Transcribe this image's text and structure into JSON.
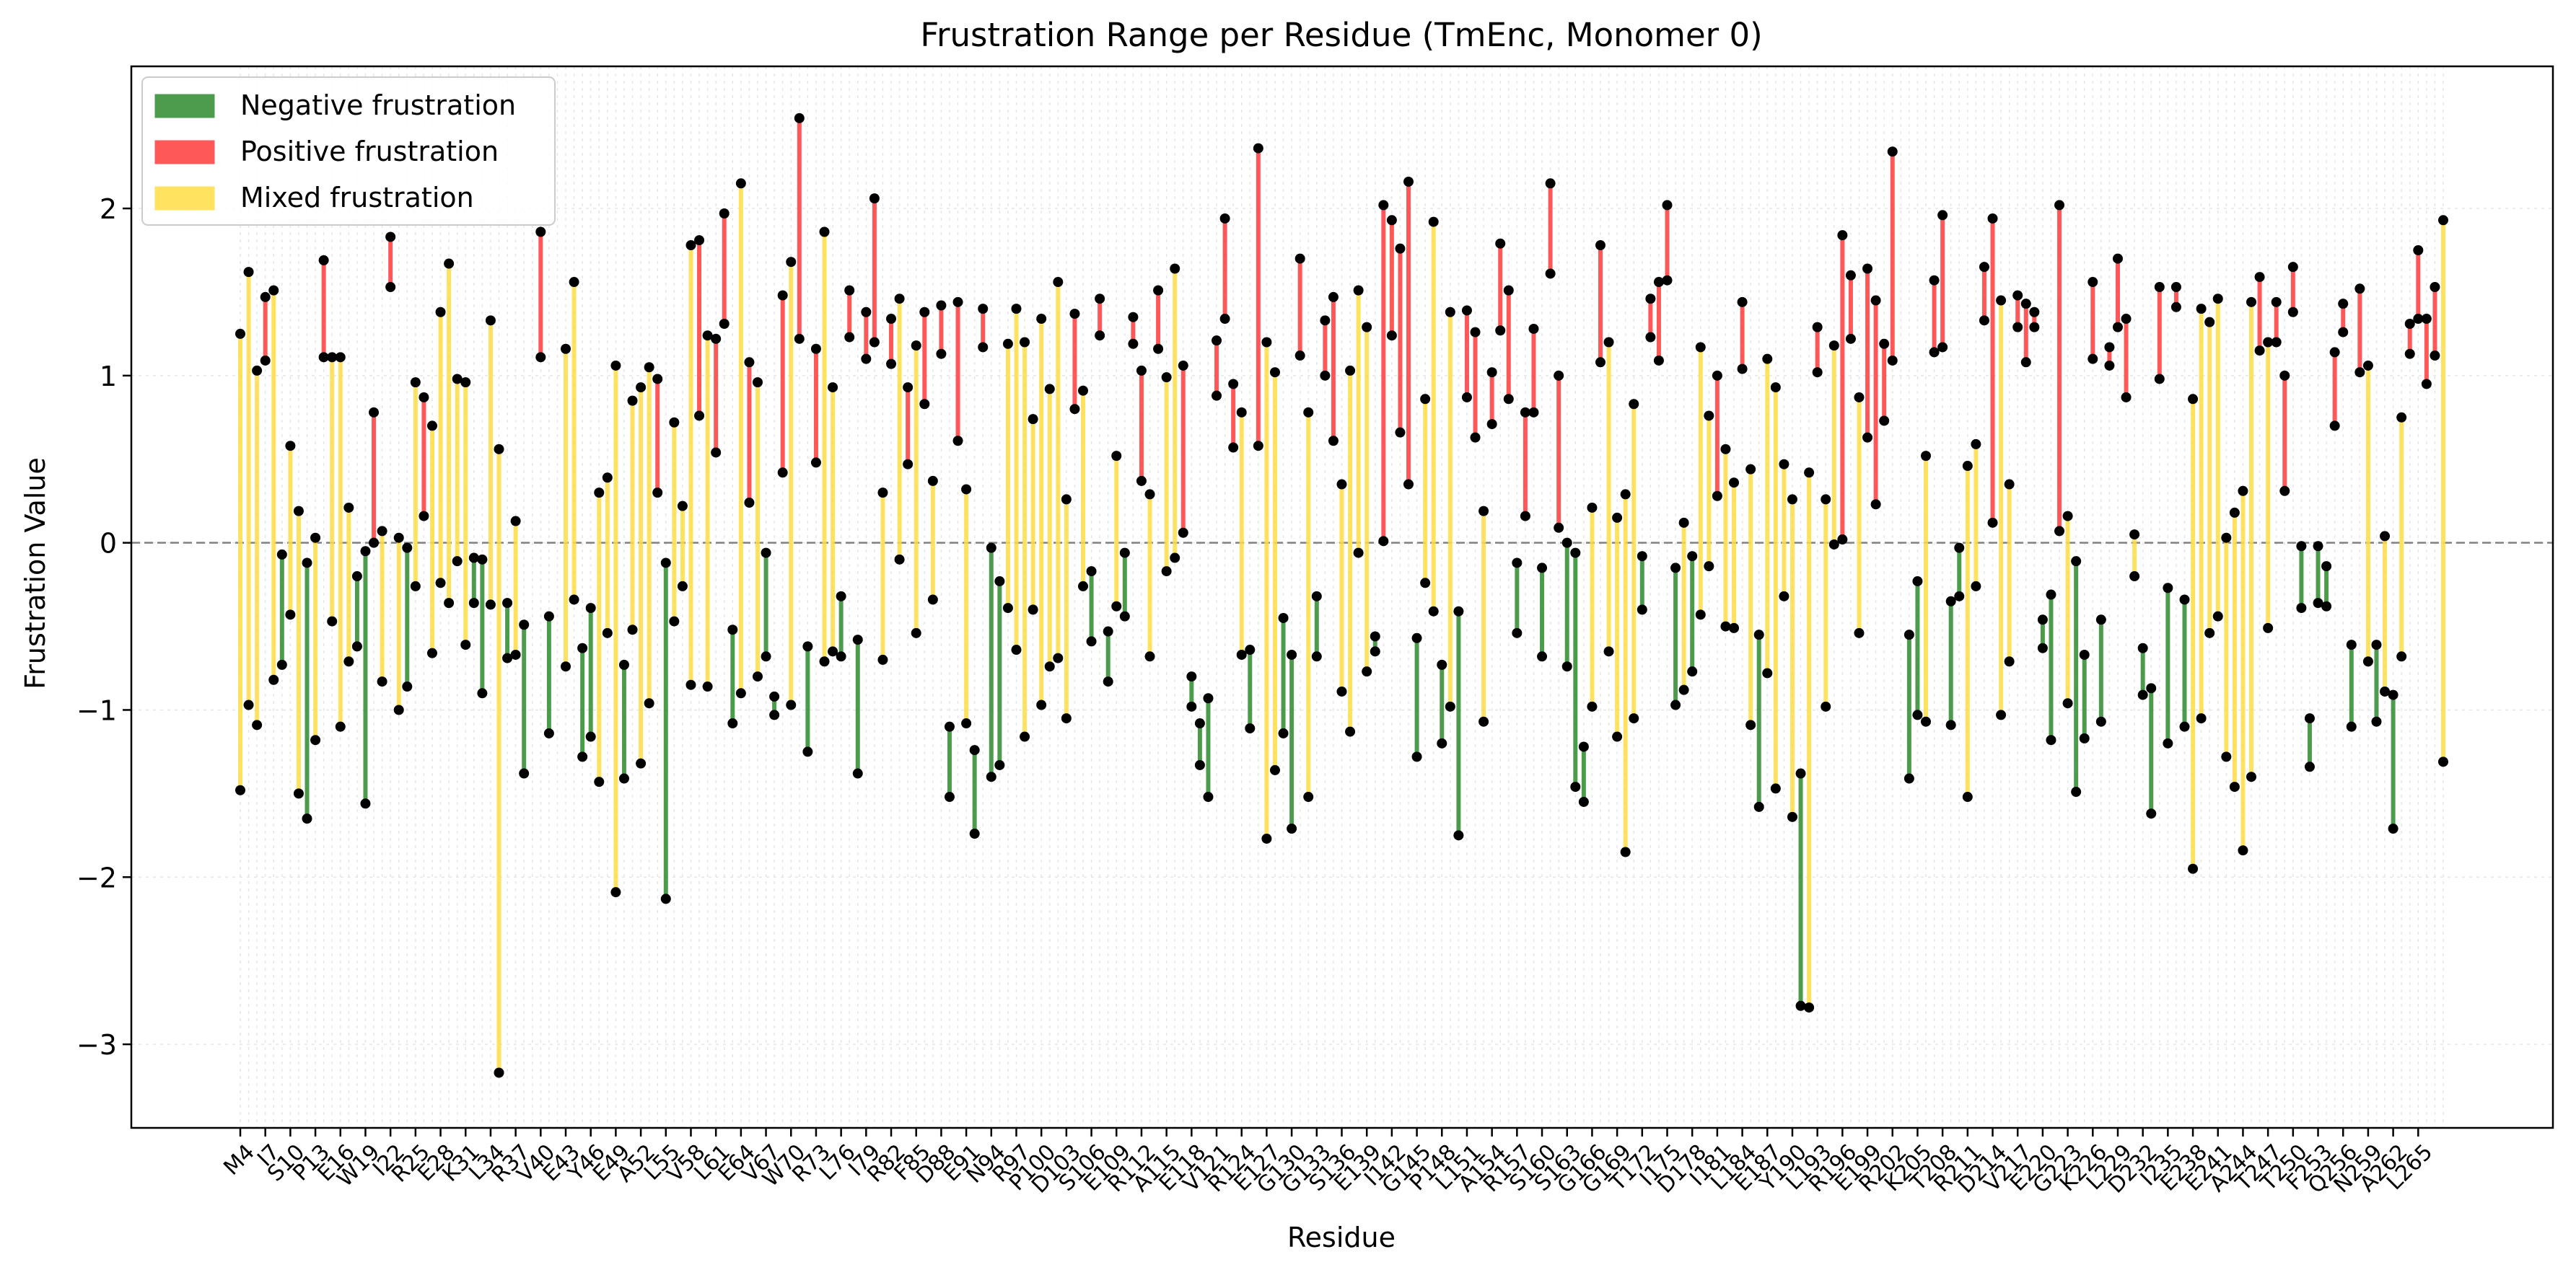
{
  "chart_data": {
    "type": "range",
    "title": "Frustration Range per Residue (TmEnc, Monomer 0)",
    "xlabel": "Residue",
    "ylabel": "Frustration Value",
    "ylim": [
      -3.5,
      2.85
    ],
    "yticks": [
      -3,
      -2,
      -1,
      0,
      1,
      2
    ],
    "ytick_labels": [
      "−3",
      "−2",
      "−1",
      "0",
      "1",
      "2"
    ],
    "grid": true,
    "legend_position": "top-left",
    "zero_line": true,
    "colors": {
      "negative": "#2e8b2e",
      "positive": "#ff3b3b",
      "mixed": "#ffdd44",
      "point": "#000000",
      "zero_line": "#808080"
    },
    "legend": [
      {
        "key": "negative",
        "label": "Negative frustration"
      },
      {
        "key": "positive",
        "label": "Positive frustration"
      },
      {
        "key": "mixed",
        "label": "Mixed frustration"
      }
    ],
    "x_tick_labels": [
      "M4",
      "I7",
      "S10",
      "P13",
      "E16",
      "W19",
      "I22",
      "R25",
      "E28",
      "K31",
      "L34",
      "R37",
      "V40",
      "E43",
      "Y46",
      "E49",
      "A52",
      "L55",
      "V58",
      "L61",
      "E64",
      "V67",
      "W70",
      "R73",
      "L76",
      "I79",
      "R82",
      "F85",
      "D88",
      "E91",
      "N94",
      "R97",
      "P100",
      "D103",
      "S106",
      "E109",
      "R112",
      "A115",
      "E118",
      "V121",
      "R124",
      "E127",
      "G130",
      "G133",
      "S136",
      "E139",
      "I142",
      "G145",
      "P148",
      "L151",
      "A154",
      "R157",
      "S160",
      "S163",
      "G166",
      "G169",
      "T172",
      "I175",
      "D178",
      "I181",
      "L184",
      "E187",
      "Y190",
      "L193",
      "R196",
      "E199",
      "R202",
      "K205",
      "T208",
      "R211",
      "D214",
      "V217",
      "E220",
      "G223",
      "K226",
      "L229",
      "D232",
      "I235",
      "E238",
      "E241",
      "A244",
      "T247",
      "T250",
      "F253",
      "Q256",
      "N259",
      "A262",
      "L265"
    ],
    "x_tick_step": 3,
    "ranges": [
      [
        -1.48,
        1.25
      ],
      [
        -0.97,
        1.62
      ],
      [
        -1.09,
        1.03
      ],
      [
        1.09,
        1.47
      ],
      [
        -0.82,
        1.51
      ],
      [
        -0.73,
        -0.07
      ],
      [
        -0.43,
        0.58
      ],
      [
        -1.5,
        0.19
      ],
      [
        -1.65,
        -0.12
      ],
      [
        -1.18,
        0.03
      ],
      [
        1.11,
        1.69
      ],
      [
        -0.47,
        1.11
      ],
      [
        -1.1,
        1.11
      ],
      [
        -0.71,
        0.21
      ],
      [
        -0.62,
        -0.2
      ],
      [
        -1.56,
        -0.05
      ],
      [
        0.0,
        0.78
      ],
      [
        -0.83,
        0.07
      ],
      [
        1.53,
        1.83
      ],
      [
        -1.0,
        0.03
      ],
      [
        -0.86,
        -0.03
      ],
      [
        -0.26,
        0.96
      ],
      [
        0.16,
        0.87
      ],
      [
        -0.66,
        0.7
      ],
      [
        -0.24,
        1.38
      ],
      [
        -0.36,
        1.67
      ],
      [
        -0.11,
        0.98
      ],
      [
        -0.61,
        0.96
      ],
      [
        -0.36,
        -0.09
      ],
      [
        -0.9,
        -0.1
      ],
      [
        -0.37,
        1.33
      ],
      [
        -3.17,
        0.56
      ],
      [
        -0.69,
        -0.36
      ],
      [
        -0.67,
        0.13
      ],
      [
        -1.38,
        -0.49
      ],
      [
        null,
        null
      ],
      [
        1.11,
        1.86
      ],
      [
        -1.14,
        -0.44
      ],
      [
        null,
        null
      ],
      [
        -0.74,
        1.16
      ],
      [
        -0.34,
        1.56
      ],
      [
        -1.28,
        -0.63
      ],
      [
        -1.16,
        -0.39
      ],
      [
        -1.43,
        0.3
      ],
      [
        -0.54,
        0.39
      ],
      [
        -2.09,
        1.06
      ],
      [
        -1.41,
        -0.73
      ],
      [
        -0.52,
        0.85
      ],
      [
        -1.32,
        0.93
      ],
      [
        -0.96,
        1.05
      ],
      [
        0.3,
        0.98
      ],
      [
        -2.13,
        -0.12
      ],
      [
        -0.47,
        0.72
      ],
      [
        -0.26,
        0.22
      ],
      [
        -0.85,
        1.78
      ],
      [
        0.76,
        1.81
      ],
      [
        -0.86,
        1.24
      ],
      [
        0.54,
        1.22
      ],
      [
        1.31,
        1.97
      ],
      [
        -1.08,
        -0.52
      ],
      [
        -0.9,
        2.15
      ],
      [
        0.24,
        1.08
      ],
      [
        -0.8,
        0.96
      ],
      [
        -0.68,
        -0.06
      ],
      [
        -1.03,
        -0.92
      ],
      [
        0.42,
        1.48
      ],
      [
        -0.97,
        1.68
      ],
      [
        1.22,
        2.54
      ],
      [
        -1.25,
        -0.62
      ],
      [
        0.48,
        1.16
      ],
      [
        -0.71,
        1.86
      ],
      [
        -0.65,
        0.93
      ],
      [
        -0.68,
        -0.32
      ],
      [
        1.23,
        1.51
      ],
      [
        -1.38,
        -0.58
      ],
      [
        1.1,
        1.38
      ],
      [
        1.2,
        2.06
      ],
      [
        -0.7,
        0.3
      ],
      [
        1.07,
        1.34
      ],
      [
        -0.1,
        1.46
      ],
      [
        0.47,
        0.93
      ],
      [
        -0.54,
        1.18
      ],
      [
        0.83,
        1.38
      ],
      [
        -0.34,
        0.37
      ],
      [
        1.13,
        1.42
      ],
      [
        -1.52,
        -1.1
      ],
      [
        0.61,
        1.44
      ],
      [
        -1.08,
        0.32
      ],
      [
        -1.74,
        -1.24
      ],
      [
        1.17,
        1.4
      ],
      [
        -1.4,
        -0.03
      ],
      [
        -1.33,
        -0.23
      ],
      [
        -0.39,
        1.19
      ],
      [
        -0.64,
        1.4
      ],
      [
        -1.16,
        1.2
      ],
      [
        -0.4,
        0.74
      ],
      [
        -0.97,
        1.34
      ],
      [
        -0.74,
        0.92
      ],
      [
        -0.69,
        1.56
      ],
      [
        -1.05,
        0.26
      ],
      [
        0.8,
        1.37
      ],
      [
        -0.26,
        0.91
      ],
      [
        -0.59,
        -0.17
      ],
      [
        1.24,
        1.46
      ],
      [
        -0.83,
        -0.53
      ],
      [
        -0.38,
        0.52
      ],
      [
        -0.44,
        -0.06
      ],
      [
        1.19,
        1.35
      ],
      [
        0.37,
        1.03
      ],
      [
        -0.68,
        0.29
      ],
      [
        1.16,
        1.51
      ],
      [
        -0.17,
        0.99
      ],
      [
        -0.09,
        1.64
      ],
      [
        0.06,
        1.06
      ],
      [
        -0.98,
        -0.8
      ],
      [
        -1.33,
        -1.08
      ],
      [
        -1.52,
        -0.93
      ],
      [
        0.88,
        1.21
      ],
      [
        1.34,
        1.94
      ],
      [
        0.57,
        0.95
      ],
      [
        -0.67,
        0.78
      ],
      [
        -1.11,
        -0.64
      ],
      [
        0.58,
        2.36
      ],
      [
        -1.77,
        1.2
      ],
      [
        -1.36,
        1.02
      ],
      [
        -1.14,
        -0.45
      ],
      [
        -1.71,
        -0.67
      ],
      [
        1.12,
        1.7
      ],
      [
        -1.52,
        0.78
      ],
      [
        -0.68,
        -0.32
      ],
      [
        1.0,
        1.33
      ],
      [
        0.61,
        1.47
      ],
      [
        -0.89,
        0.35
      ],
      [
        -1.13,
        1.03
      ],
      [
        -0.06,
        1.51
      ],
      [
        -0.77,
        1.29
      ],
      [
        -0.65,
        -0.56
      ],
      [
        0.01,
        2.02
      ],
      [
        1.24,
        1.93
      ],
      [
        0.66,
        1.76
      ],
      [
        0.35,
        2.16
      ],
      [
        -1.28,
        -0.57
      ],
      [
        -0.24,
        0.86
      ],
      [
        -0.41,
        1.92
      ],
      [
        -1.2,
        -0.73
      ],
      [
        -0.98,
        1.38
      ],
      [
        -1.75,
        -0.41
      ],
      [
        0.87,
        1.39
      ],
      [
        0.63,
        1.26
      ],
      [
        -1.07,
        0.19
      ],
      [
        0.71,
        1.02
      ],
      [
        1.27,
        1.79
      ],
      [
        0.86,
        1.51
      ],
      [
        -0.54,
        -0.12
      ],
      [
        0.16,
        0.78
      ],
      [
        0.78,
        1.28
      ],
      [
        -0.68,
        -0.15
      ],
      [
        1.61,
        2.15
      ],
      [
        0.09,
        1.0
      ],
      [
        -0.74,
        0.0
      ],
      [
        -1.46,
        -0.06
      ],
      [
        -1.55,
        -1.22
      ],
      [
        -0.98,
        0.21
      ],
      [
        1.08,
        1.78
      ],
      [
        -0.65,
        1.2
      ],
      [
        -1.16,
        0.15
      ],
      [
        -1.85,
        0.29
      ],
      [
        -1.05,
        0.83
      ],
      [
        -0.4,
        -0.08
      ],
      [
        1.23,
        1.46
      ],
      [
        1.09,
        1.56
      ],
      [
        1.57,
        2.02
      ],
      [
        -0.97,
        -0.15
      ],
      [
        -0.88,
        0.12
      ],
      [
        -0.77,
        -0.08
      ],
      [
        -0.43,
        1.17
      ],
      [
        -0.14,
        0.76
      ],
      [
        0.28,
        1.0
      ],
      [
        -0.5,
        0.56
      ],
      [
        -0.51,
        0.36
      ],
      [
        1.04,
        1.44
      ],
      [
        -1.09,
        0.44
      ],
      [
        -1.58,
        -0.55
      ],
      [
        -0.78,
        1.1
      ],
      [
        -1.47,
        0.93
      ],
      [
        -0.32,
        0.47
      ],
      [
        -1.64,
        0.26
      ],
      [
        -2.77,
        -1.38
      ],
      [
        -2.78,
        0.42
      ],
      [
        1.02,
        1.29
      ],
      [
        -0.98,
        0.26
      ],
      [
        -0.01,
        1.18
      ],
      [
        0.02,
        1.84
      ],
      [
        1.22,
        1.6
      ],
      [
        -0.54,
        0.87
      ],
      [
        0.63,
        1.64
      ],
      [
        0.23,
        1.45
      ],
      [
        0.73,
        1.19
      ],
      [
        1.09,
        2.34
      ],
      [
        null,
        null
      ],
      [
        -1.41,
        -0.55
      ],
      [
        -1.03,
        -0.23
      ],
      [
        -1.07,
        0.52
      ],
      [
        1.14,
        1.57
      ],
      [
        1.17,
        1.96
      ],
      [
        -1.09,
        -0.35
      ],
      [
        -0.32,
        -0.03
      ],
      [
        -1.52,
        0.46
      ],
      [
        -0.26,
        0.59
      ],
      [
        1.33,
        1.65
      ],
      [
        0.12,
        1.94
      ],
      [
        -1.03,
        1.45
      ],
      [
        -0.71,
        0.35
      ],
      [
        1.29,
        1.48
      ],
      [
        1.08,
        1.43
      ],
      [
        1.29,
        1.38
      ],
      [
        -0.63,
        -0.46
      ],
      [
        -1.18,
        -0.31
      ],
      [
        0.07,
        2.02
      ],
      [
        -0.96,
        0.16
      ],
      [
        -1.49,
        -0.11
      ],
      [
        -1.17,
        -0.67
      ],
      [
        1.1,
        1.56
      ],
      [
        -1.07,
        -0.46
      ],
      [
        1.06,
        1.17
      ],
      [
        1.29,
        1.7
      ],
      [
        0.87,
        1.34
      ],
      [
        -0.2,
        0.05
      ],
      [
        -0.91,
        -0.63
      ],
      [
        -1.62,
        -0.87
      ],
      [
        0.98,
        1.53
      ],
      [
        -1.2,
        -0.27
      ],
      [
        1.41,
        1.53
      ],
      [
        -1.1,
        -0.34
      ],
      [
        -1.95,
        0.86
      ],
      [
        -1.05,
        1.4
      ],
      [
        -0.54,
        1.32
      ],
      [
        -0.44,
        1.46
      ],
      [
        -1.28,
        0.03
      ],
      [
        -1.46,
        0.18
      ],
      [
        -1.84,
        0.31
      ],
      [
        -1.4,
        1.44
      ],
      [
        1.15,
        1.59
      ],
      [
        -0.51,
        1.2
      ],
      [
        1.2,
        1.44
      ],
      [
        0.31,
        1.0
      ],
      [
        1.38,
        1.65
      ],
      [
        -0.39,
        -0.02
      ],
      [
        -1.34,
        -1.05
      ],
      [
        -0.36,
        -0.02
      ],
      [
        -0.38,
        -0.14
      ],
      [
        0.7,
        1.14
      ],
      [
        1.26,
        1.43
      ],
      [
        -1.1,
        -0.61
      ],
      [
        1.02,
        1.52
      ],
      [
        -0.71,
        1.06
      ],
      [
        -1.07,
        -0.61
      ],
      [
        -0.89,
        0.04
      ],
      [
        -1.71,
        -0.91
      ],
      [
        -0.68,
        0.75
      ],
      [
        1.13,
        1.31
      ],
      [
        1.34,
        1.75
      ],
      [
        0.95,
        1.34
      ],
      [
        1.12,
        1.53
      ],
      [
        -1.31,
        1.93
      ]
    ]
  }
}
